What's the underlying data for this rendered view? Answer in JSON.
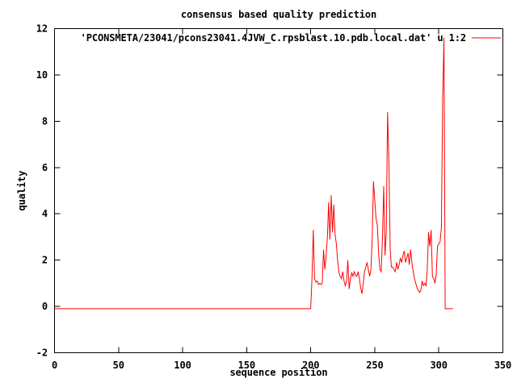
{
  "window": {
    "background": "#ffffff"
  },
  "chart_data": {
    "type": "line",
    "title": "consensus based quality prediction",
    "xlabel": "sequence position",
    "ylabel": "quality",
    "xlim": [
      0,
      350
    ],
    "ylim": [
      -2,
      12
    ],
    "xticks": [
      0,
      50,
      100,
      150,
      200,
      250,
      300,
      350
    ],
    "yticks": [
      -2,
      0,
      2,
      4,
      6,
      8,
      10,
      12
    ],
    "grid": false,
    "legend": {
      "label": "'PCONSMETA/23041/pcons23041.4JVW_C.rpsblast.10.pdb.local.dat' u 1:2",
      "position": "top-right-inside"
    },
    "colors": {
      "line": "#ff0000",
      "text": "#000000",
      "frame": "#000000"
    },
    "series": [
      {
        "name": "quality",
        "points": [
          [
            0,
            -0.1
          ],
          [
            200,
            -0.1
          ],
          [
            201,
            1.2
          ],
          [
            202,
            3.3
          ],
          [
            203,
            1.2
          ],
          [
            204,
            1.05
          ],
          [
            205,
            1.1
          ],
          [
            206,
            0.95
          ],
          [
            207,
            1.0
          ],
          [
            208,
            0.95
          ],
          [
            209,
            1.0
          ],
          [
            210,
            2.45
          ],
          [
            211,
            1.6
          ],
          [
            212,
            2.2
          ],
          [
            213,
            3.0
          ],
          [
            214,
            4.5
          ],
          [
            215,
            2.9
          ],
          [
            216,
            4.8
          ],
          [
            217,
            3.2
          ],
          [
            218,
            4.4
          ],
          [
            219,
            3.1
          ],
          [
            220,
            2.7
          ],
          [
            221,
            2.0
          ],
          [
            222,
            1.5
          ],
          [
            223,
            1.3
          ],
          [
            224,
            1.2
          ],
          [
            225,
            1.5
          ],
          [
            226,
            1.1
          ],
          [
            227,
            0.9
          ],
          [
            228,
            1.1
          ],
          [
            229,
            2.0
          ],
          [
            230,
            0.75
          ],
          [
            231,
            1.2
          ],
          [
            232,
            1.45
          ],
          [
            233,
            1.3
          ],
          [
            234,
            1.5
          ],
          [
            235,
            1.35
          ],
          [
            236,
            1.3
          ],
          [
            237,
            1.5
          ],
          [
            238,
            1.2
          ],
          [
            239,
            0.8
          ],
          [
            240,
            0.55
          ],
          [
            241,
            1.0
          ],
          [
            242,
            1.5
          ],
          [
            243,
            1.7
          ],
          [
            244,
            1.9
          ],
          [
            245,
            1.6
          ],
          [
            246,
            1.3
          ],
          [
            247,
            1.6
          ],
          [
            248,
            3.0
          ],
          [
            249,
            5.4
          ],
          [
            250,
            4.6
          ],
          [
            251,
            3.8
          ],
          [
            252,
            3.5
          ],
          [
            253,
            2.3
          ],
          [
            254,
            1.6
          ],
          [
            255,
            1.5
          ],
          [
            256,
            2.9
          ],
          [
            257,
            5.2
          ],
          [
            258,
            2.2
          ],
          [
            259,
            3.3
          ],
          [
            260,
            8.4
          ],
          [
            261,
            6.3
          ],
          [
            262,
            2.5
          ],
          [
            263,
            1.7
          ],
          [
            264,
            1.7
          ],
          [
            265,
            1.6
          ],
          [
            266,
            1.5
          ],
          [
            267,
            1.9
          ],
          [
            268,
            1.6
          ],
          [
            269,
            1.8
          ],
          [
            270,
            2.1
          ],
          [
            271,
            1.9
          ],
          [
            272,
            2.2
          ],
          [
            273,
            2.4
          ],
          [
            274,
            1.9
          ],
          [
            275,
            2.1
          ],
          [
            276,
            2.3
          ],
          [
            277,
            1.8
          ],
          [
            278,
            2.45
          ],
          [
            279,
            1.9
          ],
          [
            280,
            1.5
          ],
          [
            281,
            1.2
          ],
          [
            282,
            1.0
          ],
          [
            283,
            0.8
          ],
          [
            284,
            0.7
          ],
          [
            285,
            0.6
          ],
          [
            286,
            0.7
          ],
          [
            287,
            1.1
          ],
          [
            288,
            0.9
          ],
          [
            289,
            1.0
          ],
          [
            290,
            0.9
          ],
          [
            291,
            1.6
          ],
          [
            292,
            3.2
          ],
          [
            293,
            2.6
          ],
          [
            294,
            3.3
          ],
          [
            295,
            1.3
          ],
          [
            296,
            1.2
          ],
          [
            297,
            1.0
          ],
          [
            298,
            1.4
          ],
          [
            299,
            2.6
          ],
          [
            300,
            2.7
          ],
          [
            301,
            2.8
          ],
          [
            302,
            3.4
          ],
          [
            303,
            9.0
          ],
          [
            304,
            11.6
          ],
          [
            305,
            -0.1
          ],
          [
            311,
            -0.1
          ]
        ]
      }
    ]
  }
}
